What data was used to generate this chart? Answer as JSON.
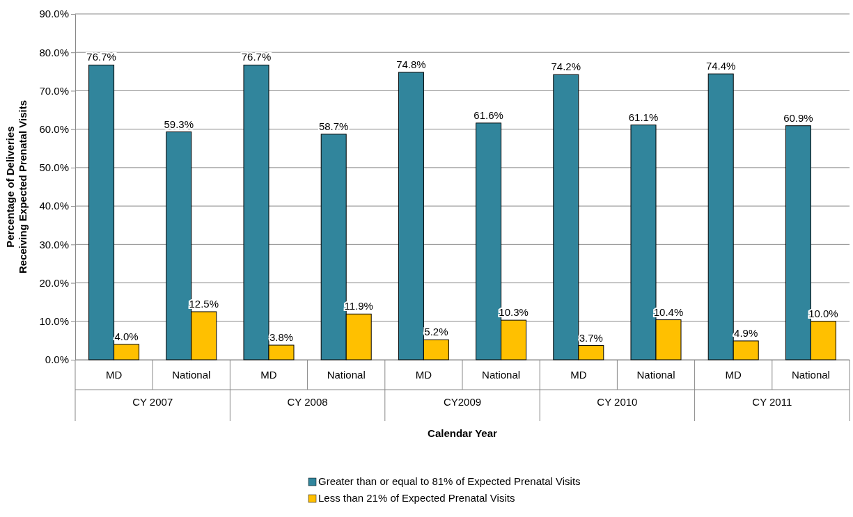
{
  "chart_data": {
    "type": "bar",
    "xlabel": "Calendar Year",
    "ylabel": "Percentage of Deliveries Receiving Expected Prenatal Visits",
    "categories": [
      "MD",
      "National",
      "MD",
      "National",
      "MD",
      "National",
      "MD",
      "National",
      "MD",
      "National"
    ],
    "annotations": [
      "CY 2007",
      "CY 2008",
      "CY2009",
      "CY 2010",
      "CY 2011"
    ],
    "series": [
      {
        "name": "Greater than or equal to 81% of Expected Prenatal Visits",
        "color": "#31859c",
        "values": [
          76.7,
          59.3,
          76.7,
          58.7,
          74.8,
          61.6,
          74.2,
          61.1,
          74.4,
          60.9
        ],
        "value_labels": [
          "76.7%",
          "59.3%",
          "76.7%",
          "58.7%",
          "74.8%",
          "61.6%",
          "74.2%",
          "61.1%",
          "74.4%",
          "60.9%"
        ]
      },
      {
        "name": "Less than 21% of Expected Prenatal Visits",
        "color": "#ffc000",
        "values": [
          4.0,
          12.5,
          3.8,
          11.9,
          5.2,
          10.3,
          3.7,
          10.4,
          4.9,
          10.0
        ],
        "value_labels": [
          "4.0%",
          "12.5%",
          "3.8%",
          "11.9%",
          "5.2%",
          "10.3%",
          "3.7%",
          "10.4%",
          "4.9%",
          "10.0%"
        ]
      }
    ],
    "ylim": [
      0,
      90
    ],
    "yticks": [
      {
        "value": 0,
        "label": "0.0%"
      },
      {
        "value": 10,
        "label": "10.0%"
      },
      {
        "value": 20,
        "label": "20.0%"
      },
      {
        "value": 30,
        "label": "30.0%"
      },
      {
        "value": 40,
        "label": "40.0%"
      },
      {
        "value": 50,
        "label": "50.0%"
      },
      {
        "value": 60,
        "label": "60.0%"
      },
      {
        "value": 70,
        "label": "70.0%"
      },
      {
        "value": 80,
        "label": "80.0%"
      },
      {
        "value": 90,
        "label": "90.0%"
      }
    ],
    "grid": "y",
    "legend": "bottom"
  }
}
